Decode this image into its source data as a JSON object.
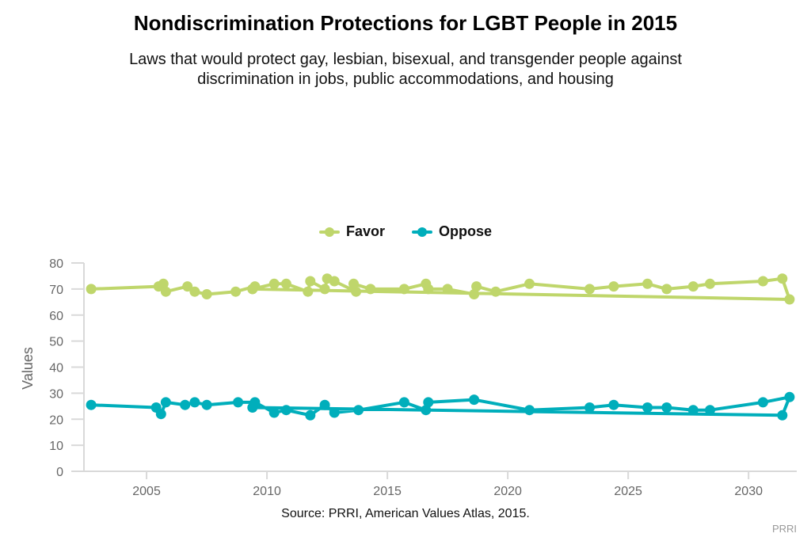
{
  "chart_data": {
    "type": "line",
    "title": "Nondiscrimination Protections for LGBT People in 2015",
    "subtitle": "Laws that would protect gay, lesbian, bisexual, and transgender people against discrimination in jobs, public accommodations, and housing",
    "xlabel": "",
    "ylabel": "Values",
    "xlim": [
      2002.4,
      2032
    ],
    "ylim": [
      0,
      80
    ],
    "x_ticks": [
      2005,
      2010,
      2015,
      2020,
      2025,
      2030
    ],
    "y_ticks": [
      0,
      10,
      20,
      30,
      40,
      50,
      60,
      70,
      80
    ],
    "grid": false,
    "legend_position": "top-center",
    "series": [
      {
        "name": "Favor",
        "color": "#bfd66b",
        "points": [
          [
            2002.7,
            70
          ],
          [
            2005.5,
            71
          ],
          [
            2005.7,
            72
          ],
          [
            2005.8,
            69
          ],
          [
            2006.7,
            71
          ],
          [
            2007.0,
            69
          ],
          [
            2007.5,
            68
          ],
          [
            2008.7,
            69
          ],
          [
            2009.5,
            71
          ],
          [
            2009.4,
            70
          ],
          [
            2010.3,
            72
          ],
          [
            2010.8,
            72
          ],
          [
            2011.7,
            69
          ],
          [
            2011.8,
            73
          ],
          [
            2012.4,
            70
          ],
          [
            2012.5,
            74
          ],
          [
            2012.8,
            73
          ],
          [
            2013.7,
            69
          ],
          [
            2013.6,
            72
          ],
          [
            2014.3,
            70
          ],
          [
            2015.7,
            70
          ],
          [
            2016.6,
            72
          ],
          [
            2016.7,
            70
          ],
          [
            2017.5,
            70
          ],
          [
            2018.6,
            68
          ],
          [
            2018.7,
            71
          ],
          [
            2019.5,
            69
          ],
          [
            2020.9,
            72
          ],
          [
            2023.4,
            70
          ],
          [
            2024.4,
            71
          ],
          [
            2025.8,
            72
          ],
          [
            2026.6,
            70
          ],
          [
            2027.7,
            71
          ],
          [
            2028.4,
            72
          ],
          [
            2030.6,
            73
          ],
          [
            2031.4,
            74
          ],
          [
            2031.7,
            66
          ],
          [
            2009.4,
            70
          ]
        ]
      },
      {
        "name": "Oppose",
        "color": "#00aebb",
        "points": [
          [
            2002.7,
            25.5
          ],
          [
            2005.4,
            24.5
          ],
          [
            2005.6,
            22
          ],
          [
            2005.8,
            26.5
          ],
          [
            2006.6,
            25.5
          ],
          [
            2007.0,
            26.5
          ],
          [
            2007.5,
            25.5
          ],
          [
            2008.8,
            26.5
          ],
          [
            2009.5,
            26.5
          ],
          [
            2010.3,
            22.5
          ],
          [
            2010.8,
            23.5
          ],
          [
            2011.8,
            21.5
          ],
          [
            2012.4,
            25.5
          ],
          [
            2012.8,
            22.5
          ],
          [
            2013.8,
            23.5
          ],
          [
            2015.7,
            26.5
          ],
          [
            2016.6,
            23.5
          ],
          [
            2016.7,
            26.5
          ],
          [
            2018.6,
            27.5
          ],
          [
            2020.9,
            23.5
          ],
          [
            2023.4,
            24.5
          ],
          [
            2024.4,
            25.5
          ],
          [
            2025.8,
            24.5
          ],
          [
            2026.6,
            24.5
          ],
          [
            2027.7,
            23.5
          ],
          [
            2028.4,
            23.5
          ],
          [
            2030.6,
            26.5
          ],
          [
            2031.7,
            28.5
          ],
          [
            2031.4,
            21.5
          ],
          [
            2009.4,
            24.5
          ]
        ]
      }
    ]
  },
  "legend": {
    "items": [
      {
        "label": "Favor",
        "color": "#bfd66b"
      },
      {
        "label": "Oppose",
        "color": "#00aebb"
      }
    ]
  },
  "footer": {
    "source": "Source: PRRI, American Values Atlas, 2015.",
    "credit": "PRRI"
  }
}
